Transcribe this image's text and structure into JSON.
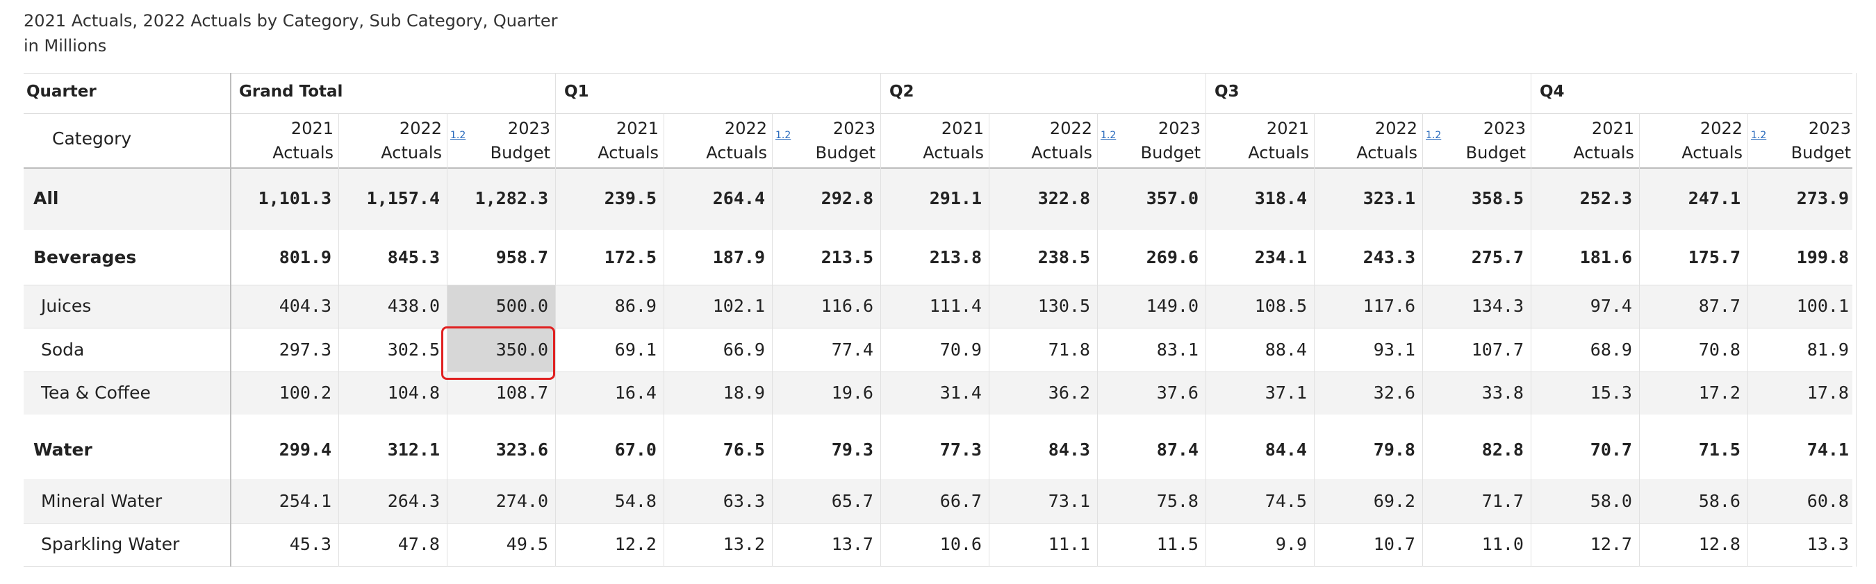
{
  "title": "2021 Actuals, 2022 Actuals by Category, Sub Category, Quarter",
  "subtitle": "in Millions",
  "header": {
    "quarter_label": "Quarter",
    "category_label": "Category",
    "groups": [
      "Grand Total",
      "Q1",
      "Q2",
      "Q3",
      "Q4"
    ],
    "measures": [
      [
        "2021",
        "Actuals"
      ],
      [
        "2022",
        "Actuals"
      ],
      [
        "2023",
        "Budget"
      ]
    ],
    "seq_icon": "1.2"
  },
  "rows": [
    {
      "label": "All",
      "bold": true,
      "values": [
        "1,101.3",
        "1,157.4",
        "1,282.3",
        "239.5",
        "264.4",
        "292.8",
        "291.1",
        "322.8",
        "357.0",
        "318.4",
        "323.1",
        "358.5",
        "252.3",
        "247.1",
        "273.9"
      ]
    },
    {
      "label": "Beverages",
      "bold": true,
      "values": [
        "801.9",
        "845.3",
        "958.7",
        "172.5",
        "187.9",
        "213.5",
        "213.8",
        "238.5",
        "269.6",
        "234.1",
        "243.3",
        "275.7",
        "181.6",
        "175.7",
        "199.8"
      ]
    },
    {
      "label": "Juices",
      "bold": false,
      "values": [
        "404.3",
        "438.0",
        "500.0",
        "86.9",
        "102.1",
        "116.6",
        "111.4",
        "130.5",
        "149.0",
        "108.5",
        "117.6",
        "134.3",
        "97.4",
        "87.7",
        "100.1"
      ]
    },
    {
      "label": "Soda",
      "bold": false,
      "values": [
        "297.3",
        "302.5",
        "350.0",
        "69.1",
        "66.9",
        "77.4",
        "70.9",
        "71.8",
        "83.1",
        "88.4",
        "93.1",
        "107.7",
        "68.9",
        "70.8",
        "81.9"
      ]
    },
    {
      "label": "Tea & Coffee",
      "bold": false,
      "values": [
        "100.2",
        "104.8",
        "108.7",
        "16.4",
        "18.9",
        "19.6",
        "31.4",
        "36.2",
        "37.6",
        "37.1",
        "32.6",
        "33.8",
        "15.3",
        "17.2",
        "17.8"
      ]
    },
    {
      "label": "Water",
      "bold": true,
      "values": [
        "299.4",
        "312.1",
        "323.6",
        "67.0",
        "76.5",
        "79.3",
        "77.3",
        "84.3",
        "87.4",
        "84.4",
        "79.8",
        "82.8",
        "70.7",
        "71.5",
        "74.1"
      ]
    },
    {
      "label": "Mineral Water",
      "bold": false,
      "values": [
        "254.1",
        "264.3",
        "274.0",
        "54.8",
        "63.3",
        "65.7",
        "66.7",
        "73.1",
        "75.8",
        "74.5",
        "69.2",
        "71.7",
        "58.0",
        "58.6",
        "60.8"
      ]
    },
    {
      "label": "Sparkling Water",
      "bold": false,
      "values": [
        "45.3",
        "47.8",
        "49.5",
        "12.2",
        "13.2",
        "13.7",
        "10.6",
        "11.1",
        "11.5",
        "9.9",
        "10.7",
        "11.0",
        "12.7",
        "12.8",
        "13.3"
      ]
    }
  ],
  "highlighted_cells": [
    [
      2,
      2
    ],
    [
      3,
      2
    ]
  ],
  "selected_cell": [
    3,
    2
  ],
  "colors": {
    "highlight": "#d7d7d7",
    "selection_border": "#e02020",
    "icon": "#2a6bbd"
  }
}
